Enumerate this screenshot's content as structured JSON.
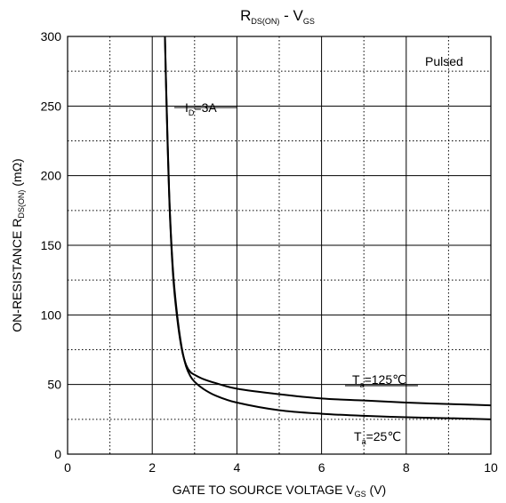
{
  "chart_data": {
    "type": "line",
    "title": {
      "main": "R",
      "sub1": "DS(ON)",
      "mid": " - V",
      "sub2": "GS"
    },
    "xlabel": {
      "main": "GATE TO SOURCE VOLTAGE V",
      "sub": "GS",
      "tail": " (V)"
    },
    "ylabel": {
      "main": "ON-RESISTANCE R",
      "sub": "DS(ON)",
      "tail": " (mΩ)"
    },
    "xlim": [
      0,
      10
    ],
    "ylim": [
      0,
      300
    ],
    "x_ticks": [
      {
        "value": 0,
        "label": "0"
      },
      {
        "value": 2,
        "label": "2"
      },
      {
        "value": 4,
        "label": "4"
      },
      {
        "value": 6,
        "label": "6"
      },
      {
        "value": 8,
        "label": "8"
      },
      {
        "value": 10,
        "label": "10"
      }
    ],
    "y_ticks": [
      {
        "value": 0,
        "label": "0"
      },
      {
        "value": 50,
        "label": "50"
      },
      {
        "value": 100,
        "label": "100"
      },
      {
        "value": 150,
        "label": "150"
      },
      {
        "value": 200,
        "label": "200"
      },
      {
        "value": 250,
        "label": "250"
      },
      {
        "value": 300,
        "label": "300"
      }
    ],
    "grid": true,
    "series": [
      {
        "name": "T_a=125°C",
        "x": [
          2.3,
          2.33,
          2.37,
          2.42,
          2.5,
          2.6,
          2.7,
          2.8,
          2.9,
          3.0,
          3.2,
          3.5,
          4.0,
          5.0,
          6.0,
          7.0,
          8.0,
          9.0,
          10.0
        ],
        "y": [
          300,
          260,
          215,
          170,
          125,
          95,
          75,
          64,
          59,
          57,
          54,
          51,
          47,
          43,
          40,
          38.5,
          37,
          36,
          35
        ]
      },
      {
        "name": "T_a=25°C",
        "x": [
          2.3,
          2.33,
          2.37,
          2.42,
          2.5,
          2.6,
          2.7,
          2.8,
          2.9,
          3.0,
          3.2,
          3.5,
          4.0,
          5.0,
          6.0,
          7.0,
          8.0,
          9.0,
          10.0
        ],
        "y": [
          300,
          262,
          218,
          172,
          128,
          97,
          76,
          63,
          56,
          52,
          47,
          42,
          37,
          31.5,
          29,
          27.5,
          26.5,
          25.8,
          25
        ]
      }
    ],
    "annotations": {
      "pulsed": "Pulsed",
      "id": {
        "main": "I",
        "sub": "D",
        "tail": "=3A"
      },
      "t125": {
        "main": "T",
        "sub": "a",
        "tail": "=125℃"
      },
      "t25": {
        "main": "T",
        "sub": "a",
        "tail": "=25℃"
      }
    }
  }
}
